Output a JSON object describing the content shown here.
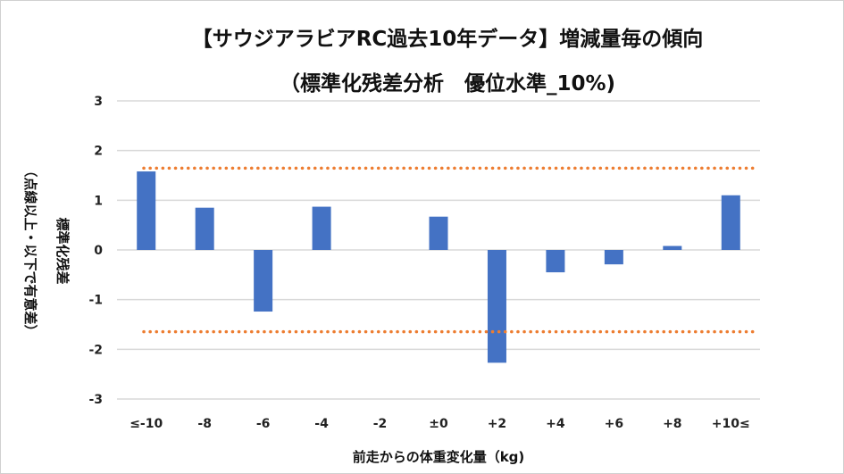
{
  "chart_data": {
    "type": "bar",
    "title": "【サウジアラビアRC過去10年データ】増減量毎の傾向",
    "subtitle": "（標準化残差分析　優位水準_10%)",
    "xlabel": "前走からの体重変化量（kg)",
    "ylabel": "標準化残差",
    "ylabel_note": "（点線以上・以下で有意差）",
    "categories": [
      "≤-10",
      "-8",
      "-6",
      "-4",
      "-2",
      "±0",
      "+2",
      "+4",
      "+6",
      "+8",
      "+10≤"
    ],
    "values": [
      1.58,
      0.85,
      -1.24,
      0.87,
      0,
      0.67,
      -2.27,
      -0.45,
      -0.29,
      0.08,
      1.1
    ],
    "ylim": [
      -3,
      3
    ],
    "yticks": [
      "3",
      "2",
      "1",
      "0",
      "-1",
      "-2",
      "-3"
    ],
    "thresholds": [
      1.645,
      -1.645
    ],
    "grid": true,
    "colors": {
      "bar": "#4472C4",
      "threshold": "#ED7D31",
      "grid": "#D9D9D9"
    }
  }
}
